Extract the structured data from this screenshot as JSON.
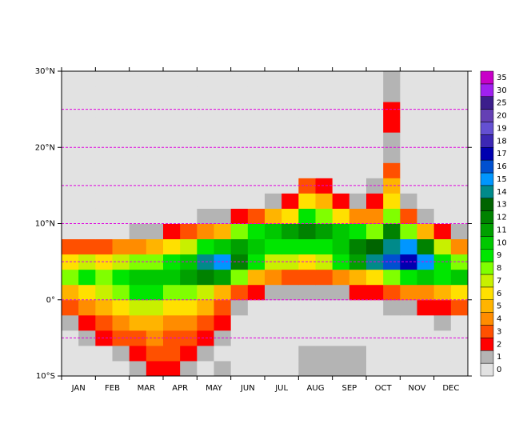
{
  "chart_data": {
    "type": "heatmap",
    "categories": [
      "JAN",
      "FEB",
      "MAR",
      "APR",
      "MAY",
      "JUN",
      "JUL",
      "AUG",
      "SEP",
      "OCT",
      "NOV",
      "DEC"
    ],
    "y": [
      -9,
      -7,
      -5,
      -3,
      -1,
      1,
      3,
      5,
      7,
      9,
      11,
      13,
      15,
      17,
      19,
      21,
      23,
      25,
      27,
      29
    ],
    "z": [
      [
        0,
        0,
        0,
        0,
        1,
        2,
        2,
        1,
        0,
        1,
        0,
        0,
        0,
        0,
        1,
        1,
        1,
        1,
        0,
        0,
        0,
        0,
        0,
        0
      ],
      [
        0,
        0,
        0,
        1,
        2,
        3,
        3,
        2,
        1,
        0,
        0,
        0,
        0,
        0,
        1,
        1,
        1,
        1,
        0,
        0,
        0,
        0,
        0,
        0
      ],
      [
        0,
        1,
        2,
        3,
        3,
        4,
        3,
        3,
        2,
        1,
        0,
        0,
        0,
        0,
        0,
        0,
        0,
        0,
        0,
        0,
        0,
        0,
        0,
        0
      ],
      [
        1,
        2,
        3,
        4,
        5,
        5,
        4,
        4,
        3,
        2,
        0,
        0,
        0,
        0,
        0,
        0,
        0,
        0,
        0,
        0,
        0,
        0,
        1,
        0
      ],
      [
        3,
        4,
        5,
        6,
        7,
        7,
        6,
        6,
        5,
        3,
        1,
        0,
        0,
        0,
        0,
        0,
        0,
        0,
        0,
        1,
        1,
        2,
        2,
        3
      ],
      [
        5,
        6,
        7,
        8,
        9,
        9,
        8,
        8,
        7,
        5,
        3,
        2,
        1,
        1,
        1,
        1,
        1,
        2,
        2,
        3,
        4,
        4,
        5,
        6
      ],
      [
        8,
        9,
        8,
        9,
        10,
        10,
        10,
        11,
        12,
        11,
        8,
        5,
        4,
        3,
        3,
        3,
        4,
        5,
        6,
        8,
        9,
        10,
        9,
        10
      ],
      [
        6,
        7,
        6,
        7,
        8,
        8,
        9,
        10,
        14,
        15,
        12,
        9,
        7,
        7,
        6,
        7,
        9,
        11,
        14,
        16,
        17,
        15,
        9,
        8
      ],
      [
        3,
        3,
        3,
        4,
        4,
        5,
        6,
        7,
        9,
        10,
        11,
        10,
        9,
        9,
        9,
        9,
        10,
        12,
        13,
        14,
        15,
        12,
        7,
        4
      ],
      [
        0,
        0,
        0,
        0,
        1,
        1,
        2,
        3,
        4,
        5,
        8,
        9,
        10,
        11,
        12,
        11,
        10,
        9,
        8,
        12,
        8,
        5,
        2,
        1
      ],
      [
        0,
        0,
        0,
        0,
        0,
        0,
        0,
        0,
        1,
        1,
        2,
        3,
        5,
        6,
        9,
        8,
        6,
        4,
        4,
        8,
        3,
        1,
        0,
        0
      ],
      [
        0,
        0,
        0,
        0,
        0,
        0,
        0,
        0,
        0,
        0,
        0,
        0,
        1,
        2,
        6,
        5,
        2,
        1,
        2,
        6,
        1,
        0,
        0,
        0
      ],
      [
        0,
        0,
        0,
        0,
        0,
        0,
        0,
        0,
        0,
        0,
        0,
        0,
        0,
        0,
        3,
        2,
        0,
        0,
        1,
        5,
        0,
        0,
        0,
        0
      ],
      [
        0,
        0,
        0,
        0,
        0,
        0,
        0,
        0,
        0,
        0,
        0,
        0,
        0,
        0,
        0,
        0,
        0,
        0,
        0,
        3,
        0,
        0,
        0,
        0
      ],
      [
        0,
        0,
        0,
        0,
        0,
        0,
        0,
        0,
        0,
        0,
        0,
        0,
        0,
        0,
        0,
        0,
        0,
        0,
        0,
        1,
        0,
        0,
        0,
        0
      ],
      [
        0,
        0,
        0,
        0,
        0,
        0,
        0,
        0,
        0,
        0,
        0,
        0,
        0,
        0,
        0,
        0,
        0,
        0,
        0,
        1,
        0,
        0,
        0,
        0
      ],
      [
        0,
        0,
        0,
        0,
        0,
        0,
        0,
        0,
        0,
        0,
        0,
        0,
        0,
        0,
        0,
        0,
        0,
        0,
        0,
        2,
        0,
        0,
        0,
        0
      ],
      [
        0,
        0,
        0,
        0,
        0,
        0,
        0,
        0,
        0,
        0,
        0,
        0,
        0,
        0,
        0,
        0,
        0,
        0,
        0,
        2,
        0,
        0,
        0,
        0
      ],
      [
        0,
        0,
        0,
        0,
        0,
        0,
        0,
        0,
        0,
        0,
        0,
        0,
        0,
        0,
        0,
        0,
        0,
        0,
        0,
        1,
        0,
        0,
        0,
        0
      ],
      [
        0,
        0,
        0,
        0,
        0,
        0,
        0,
        0,
        0,
        0,
        0,
        0,
        0,
        0,
        0,
        0,
        0,
        0,
        0,
        1,
        0,
        0,
        0,
        0
      ]
    ],
    "ylim": [
      -10,
      30
    ],
    "yticks": [
      {
        "value": -10,
        "label": "10°S"
      },
      {
        "value": 0,
        "label": "0°"
      },
      {
        "value": 10,
        "label": "10°N"
      },
      {
        "value": 20,
        "label": "20°N"
      },
      {
        "value": 30,
        "label": "30°N"
      }
    ],
    "grid_y": [
      -5,
      0,
      5,
      10,
      15,
      20,
      25
    ],
    "grid_color": "#e000e0",
    "levels": [
      0,
      1,
      2,
      3,
      4,
      5,
      6,
      7,
      8,
      9,
      10,
      11,
      12,
      13,
      14,
      15,
      16,
      17,
      18,
      19,
      20,
      25,
      30,
      35
    ],
    "colors": [
      "#e2e2e2",
      "#b4b4b4",
      "#ff0000",
      "#ff5000",
      "#ff8c00",
      "#ffb400",
      "#ffe000",
      "#c8f000",
      "#80ff00",
      "#00e600",
      "#00c800",
      "#00a000",
      "#008200",
      "#006400",
      "#008a8a",
      "#0096ff",
      "#0050d0",
      "#0000b0",
      "#3c28b4",
      "#6450d2",
      "#6440b4",
      "#3c1e8c",
      "#a020f0",
      "#c800c8"
    ]
  }
}
